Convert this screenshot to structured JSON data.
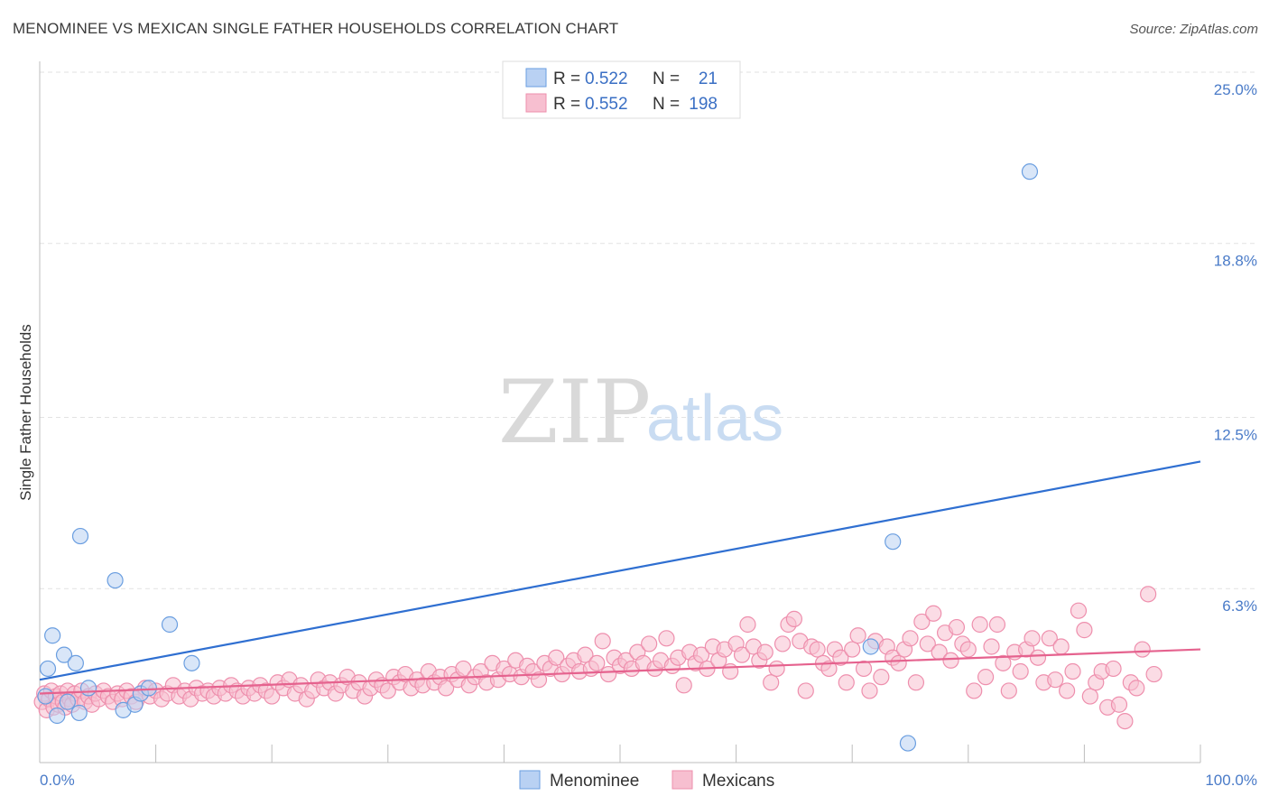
{
  "title": "MENOMINEE VS MEXICAN SINGLE FATHER HOUSEHOLDS CORRELATION CHART",
  "source": "Source: ZipAtlas.com",
  "watermark": {
    "zip": "ZIP",
    "atlas": "atlas"
  },
  "colors": {
    "menominee_fill": "#b9d1f3",
    "menominee_stroke": "#6a9ee0",
    "menominee_line": "#2f6fd1",
    "mexicans_fill": "#f7bfd0",
    "mexicans_stroke": "#ee8fad",
    "mexicans_line": "#e5628e",
    "axis_label": "#4a7bc8",
    "grid": "#e2e2e2"
  },
  "legend": {
    "rows": [
      {
        "r_label": "R =",
        "r_value": "0.522",
        "n_label": "N =",
        "n_value": "21"
      },
      {
        "r_label": "R =",
        "r_value": "0.552",
        "n_label": "N =",
        "n_value": "198"
      }
    ]
  },
  "chart_data": {
    "type": "scatter",
    "title": "MENOMINEE VS MEXICAN SINGLE FATHER HOUSEHOLDS CORRELATION CHART",
    "xlabel": "",
    "ylabel": "Single Father Households",
    "xlim": [
      0,
      100
    ],
    "ylim": [
      0,
      25.0
    ],
    "x_tick_labels": [
      "0.0%",
      "100.0%"
    ],
    "y_ticks": [
      6.3,
      12.5,
      18.8,
      25.0
    ],
    "y_tick_labels": [
      "6.3%",
      "12.5%",
      "18.8%",
      "25.0%"
    ],
    "grid": true,
    "legend_position": "top-center",
    "series": [
      {
        "name": "Menominee",
        "r": 0.522,
        "n": 21,
        "trend": {
          "x": [
            0,
            100
          ],
          "y": [
            3.0,
            10.9
          ]
        },
        "points": [
          [
            0.5,
            2.4
          ],
          [
            0.7,
            3.4
          ],
          [
            1.1,
            4.6
          ],
          [
            1.5,
            1.7
          ],
          [
            2.1,
            3.9
          ],
          [
            2.4,
            2.2
          ],
          [
            3.1,
            3.6
          ],
          [
            3.4,
            1.8
          ],
          [
            3.5,
            8.2
          ],
          [
            4.2,
            2.7
          ],
          [
            6.5,
            6.6
          ],
          [
            7.2,
            1.9
          ],
          [
            8.2,
            2.1
          ],
          [
            8.7,
            2.5
          ],
          [
            9.4,
            2.7
          ],
          [
            11.2,
            5.0
          ],
          [
            13.1,
            3.6
          ],
          [
            71.6,
            4.2
          ],
          [
            73.5,
            8.0
          ],
          [
            74.8,
            0.7
          ],
          [
            85.3,
            21.4
          ]
        ]
      },
      {
        "name": "Mexicans",
        "r": 0.552,
        "n": 198,
        "trend": {
          "x": [
            0,
            100
          ],
          "y": [
            2.5,
            4.1
          ]
        },
        "points": [
          [
            0.2,
            2.2
          ],
          [
            0.4,
            2.5
          ],
          [
            0.6,
            1.9
          ],
          [
            0.8,
            2.3
          ],
          [
            1.0,
            2.6
          ],
          [
            1.2,
            2.0
          ],
          [
            1.4,
            2.4
          ],
          [
            1.6,
            2.1
          ],
          [
            1.8,
            2.5
          ],
          [
            2.0,
            2.2
          ],
          [
            2.2,
            2.0
          ],
          [
            2.4,
            2.6
          ],
          [
            2.6,
            2.3
          ],
          [
            2.8,
            2.1
          ],
          [
            3.0,
            2.5
          ],
          [
            3.3,
            2.3
          ],
          [
            3.6,
            2.6
          ],
          [
            3.9,
            2.2
          ],
          [
            4.2,
            2.4
          ],
          [
            4.5,
            2.1
          ],
          [
            4.8,
            2.5
          ],
          [
            5.1,
            2.3
          ],
          [
            5.5,
            2.6
          ],
          [
            5.9,
            2.4
          ],
          [
            6.3,
            2.2
          ],
          [
            6.7,
            2.5
          ],
          [
            7.1,
            2.3
          ],
          [
            7.5,
            2.6
          ],
          [
            7.9,
            2.4
          ],
          [
            8.3,
            2.2
          ],
          [
            8.7,
            2.5
          ],
          [
            9.1,
            2.7
          ],
          [
            9.5,
            2.4
          ],
          [
            10.0,
            2.6
          ],
          [
            10.5,
            2.3
          ],
          [
            11.0,
            2.5
          ],
          [
            11.5,
            2.8
          ],
          [
            12.0,
            2.4
          ],
          [
            12.5,
            2.6
          ],
          [
            13.0,
            2.3
          ],
          [
            13.5,
            2.7
          ],
          [
            14.0,
            2.5
          ],
          [
            14.5,
            2.6
          ],
          [
            15.0,
            2.4
          ],
          [
            15.5,
            2.7
          ],
          [
            16.0,
            2.5
          ],
          [
            16.5,
            2.8
          ],
          [
            17.0,
            2.6
          ],
          [
            17.5,
            2.4
          ],
          [
            18.0,
            2.7
          ],
          [
            18.5,
            2.5
          ],
          [
            19.0,
            2.8
          ],
          [
            19.5,
            2.6
          ],
          [
            20.0,
            2.4
          ],
          [
            20.5,
            2.9
          ],
          [
            21.0,
            2.7
          ],
          [
            21.5,
            3.0
          ],
          [
            22.0,
            2.5
          ],
          [
            22.5,
            2.8
          ],
          [
            23.0,
            2.3
          ],
          [
            23.5,
            2.6
          ],
          [
            24.0,
            3.0
          ],
          [
            24.5,
            2.7
          ],
          [
            25.0,
            2.9
          ],
          [
            25.5,
            2.5
          ],
          [
            26.0,
            2.8
          ],
          [
            26.5,
            3.1
          ],
          [
            27.0,
            2.6
          ],
          [
            27.5,
            2.9
          ],
          [
            28.0,
            2.4
          ],
          [
            28.5,
            2.7
          ],
          [
            29.0,
            3.0
          ],
          [
            29.5,
            2.8
          ],
          [
            30.0,
            2.6
          ],
          [
            30.5,
            3.1
          ],
          [
            31.0,
            2.9
          ],
          [
            31.5,
            3.2
          ],
          [
            32.0,
            2.7
          ],
          [
            32.5,
            3.0
          ],
          [
            33.0,
            2.8
          ],
          [
            33.5,
            3.3
          ],
          [
            34.0,
            2.9
          ],
          [
            34.5,
            3.1
          ],
          [
            35.0,
            2.7
          ],
          [
            35.5,
            3.2
          ],
          [
            36.0,
            3.0
          ],
          [
            36.5,
            3.4
          ],
          [
            37.0,
            2.8
          ],
          [
            37.5,
            3.1
          ],
          [
            38.0,
            3.3
          ],
          [
            38.5,
            2.9
          ],
          [
            39.0,
            3.6
          ],
          [
            39.5,
            3.0
          ],
          [
            40.0,
            3.4
          ],
          [
            40.5,
            3.2
          ],
          [
            41.0,
            3.7
          ],
          [
            41.5,
            3.1
          ],
          [
            42.0,
            3.5
          ],
          [
            42.5,
            3.3
          ],
          [
            43.0,
            3.0
          ],
          [
            43.5,
            3.6
          ],
          [
            44.0,
            3.4
          ],
          [
            44.5,
            3.8
          ],
          [
            45.0,
            3.2
          ],
          [
            45.5,
            3.5
          ],
          [
            46.0,
            3.7
          ],
          [
            46.5,
            3.3
          ],
          [
            47.0,
            3.9
          ],
          [
            47.5,
            3.4
          ],
          [
            48.0,
            3.6
          ],
          [
            48.5,
            4.4
          ],
          [
            49.0,
            3.2
          ],
          [
            49.5,
            3.8
          ],
          [
            50.0,
            3.5
          ],
          [
            50.5,
            3.7
          ],
          [
            51.0,
            3.4
          ],
          [
            51.5,
            4.0
          ],
          [
            52.0,
            3.6
          ],
          [
            52.5,
            4.3
          ],
          [
            53.0,
            3.4
          ],
          [
            53.5,
            3.7
          ],
          [
            54.0,
            4.5
          ],
          [
            54.5,
            3.5
          ],
          [
            55.0,
            3.8
          ],
          [
            55.5,
            2.8
          ],
          [
            56.0,
            4.0
          ],
          [
            56.5,
            3.6
          ],
          [
            57.0,
            3.9
          ],
          [
            57.5,
            3.4
          ],
          [
            58.0,
            4.2
          ],
          [
            58.5,
            3.7
          ],
          [
            59.0,
            4.1
          ],
          [
            59.5,
            3.3
          ],
          [
            60.0,
            4.3
          ],
          [
            60.5,
            3.9
          ],
          [
            61.0,
            5.0
          ],
          [
            61.5,
            4.2
          ],
          [
            62.0,
            3.7
          ],
          [
            62.5,
            4.0
          ],
          [
            63.0,
            2.9
          ],
          [
            63.5,
            3.4
          ],
          [
            64.0,
            4.3
          ],
          [
            64.5,
            5.0
          ],
          [
            65.0,
            5.2
          ],
          [
            65.5,
            4.4
          ],
          [
            66.0,
            2.6
          ],
          [
            66.5,
            4.2
          ],
          [
            67.0,
            4.1
          ],
          [
            67.5,
            3.6
          ],
          [
            68.0,
            3.4
          ],
          [
            68.5,
            4.1
          ],
          [
            69.0,
            3.8
          ],
          [
            69.5,
            2.9
          ],
          [
            70.0,
            4.1
          ],
          [
            70.5,
            4.6
          ],
          [
            71.0,
            3.4
          ],
          [
            71.5,
            2.6
          ],
          [
            72.0,
            4.4
          ],
          [
            72.5,
            3.1
          ],
          [
            73.0,
            4.2
          ],
          [
            73.5,
            3.8
          ],
          [
            74.0,
            3.6
          ],
          [
            74.5,
            4.1
          ],
          [
            75.0,
            4.5
          ],
          [
            75.5,
            2.9
          ],
          [
            76.0,
            5.1
          ],
          [
            76.5,
            4.3
          ],
          [
            77.0,
            5.4
          ],
          [
            77.5,
            4.0
          ],
          [
            78.0,
            4.7
          ],
          [
            78.5,
            3.7
          ],
          [
            79.0,
            4.9
          ],
          [
            79.5,
            4.3
          ],
          [
            80.0,
            4.1
          ],
          [
            80.5,
            2.6
          ],
          [
            81.0,
            5.0
          ],
          [
            81.5,
            3.1
          ],
          [
            82.0,
            4.2
          ],
          [
            82.5,
            5.0
          ],
          [
            83.0,
            3.6
          ],
          [
            83.5,
            2.6
          ],
          [
            84.0,
            4.0
          ],
          [
            84.5,
            3.3
          ],
          [
            85.0,
            4.1
          ],
          [
            85.5,
            4.5
          ],
          [
            86.0,
            3.8
          ],
          [
            86.5,
            2.9
          ],
          [
            87.0,
            4.5
          ],
          [
            87.5,
            3.0
          ],
          [
            88.0,
            4.2
          ],
          [
            88.5,
            2.6
          ],
          [
            89.0,
            3.3
          ],
          [
            89.5,
            5.5
          ],
          [
            90.0,
            4.8
          ],
          [
            90.5,
            2.4
          ],
          [
            91.0,
            2.9
          ],
          [
            91.5,
            3.3
          ],
          [
            92.0,
            2.0
          ],
          [
            92.5,
            3.4
          ],
          [
            93.0,
            2.1
          ],
          [
            93.5,
            1.5
          ],
          [
            94.0,
            2.9
          ],
          [
            94.5,
            2.7
          ],
          [
            95.0,
            4.1
          ],
          [
            95.5,
            6.1
          ],
          [
            96.0,
            3.2
          ]
        ]
      }
    ]
  }
}
